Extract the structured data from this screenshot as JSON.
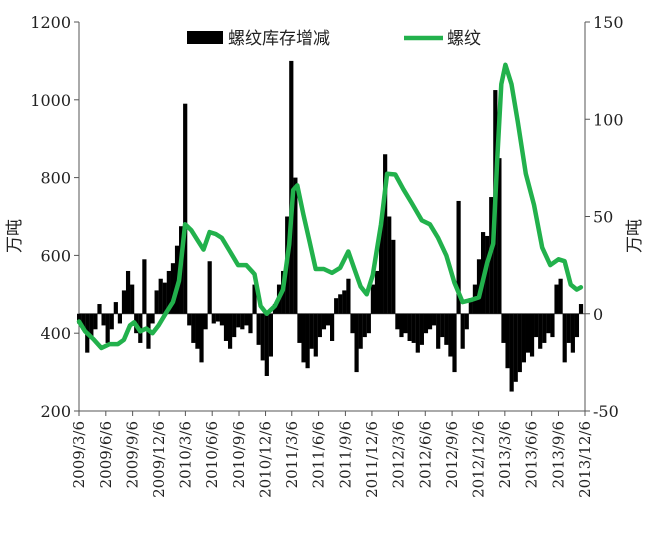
{
  "chart_data": {
    "type": "bar+line",
    "left_axis": {
      "label": "万吨",
      "min": 200,
      "max": 1200,
      "ticks": [
        200,
        400,
        600,
        800,
        1000,
        1200
      ]
    },
    "right_axis": {
      "label": "万吨",
      "min": -50,
      "max": 150,
      "ticks": [
        -50,
        0,
        50,
        100,
        150
      ]
    },
    "x_axis": {
      "tick_labels": [
        "2009/3/6",
        "2009/6/6",
        "2009/9/6",
        "2009/12/6",
        "2010/3/6",
        "2010/6/6",
        "2010/9/6",
        "2010/12/6",
        "2011/3/6",
        "2011/6/6",
        "2011/9/6",
        "2011/12/6",
        "2012/3/6",
        "2012/6/6",
        "2012/9/6",
        "2012/12/6",
        "2013/3/6",
        "2013/6/6",
        "2013/9/6",
        "2013/12/6"
      ]
    },
    "legend": {
      "position": "top",
      "bar_series_name": "螺纹库存增减",
      "line_series_name": "螺纹"
    },
    "colors": {
      "bar": "#000000",
      "line": "#22b14c",
      "axis": "#555555"
    },
    "series": [
      {
        "name": "螺纹库存增减",
        "type": "bar",
        "axis": "right",
        "points": [
          {
            "x": "2009-03-06",
            "y": -5
          },
          {
            "x": "2009-03-20",
            "y": -8
          },
          {
            "x": "2009-04-03",
            "y": -20
          },
          {
            "x": "2009-04-17",
            "y": -12
          },
          {
            "x": "2009-05-01",
            "y": -8
          },
          {
            "x": "2009-05-15",
            "y": 5
          },
          {
            "x": "2009-05-29",
            "y": -6
          },
          {
            "x": "2009-06-12",
            "y": -15
          },
          {
            "x": "2009-06-26",
            "y": -8
          },
          {
            "x": "2009-07-10",
            "y": 6
          },
          {
            "x": "2009-07-24",
            "y": -5
          },
          {
            "x": "2009-08-07",
            "y": 12
          },
          {
            "x": "2009-08-21",
            "y": 22
          },
          {
            "x": "2009-09-04",
            "y": 15
          },
          {
            "x": "2009-09-18",
            "y": -10
          },
          {
            "x": "2009-10-02",
            "y": -15
          },
          {
            "x": "2009-10-16",
            "y": 28
          },
          {
            "x": "2009-10-30",
            "y": -18
          },
          {
            "x": "2009-11-13",
            "y": -5
          },
          {
            "x": "2009-11-27",
            "y": 12
          },
          {
            "x": "2009-12-11",
            "y": 18
          },
          {
            "x": "2009-12-25",
            "y": 16
          },
          {
            "x": "2010-01-08",
            "y": 22
          },
          {
            "x": "2010-01-22",
            "y": 26
          },
          {
            "x": "2010-02-05",
            "y": 35
          },
          {
            "x": "2010-02-19",
            "y": 45
          },
          {
            "x": "2010-03-05",
            "y": 108
          },
          {
            "x": "2010-03-19",
            "y": -6
          },
          {
            "x": "2010-04-02",
            "y": -15
          },
          {
            "x": "2010-04-16",
            "y": -18
          },
          {
            "x": "2010-04-30",
            "y": -25
          },
          {
            "x": "2010-05-14",
            "y": -8
          },
          {
            "x": "2010-05-28",
            "y": 27
          },
          {
            "x": "2010-06-11",
            "y": -5
          },
          {
            "x": "2010-06-25",
            "y": -4
          },
          {
            "x": "2010-07-09",
            "y": -6
          },
          {
            "x": "2010-07-23",
            "y": -14
          },
          {
            "x": "2010-08-06",
            "y": -18
          },
          {
            "x": "2010-08-20",
            "y": -12
          },
          {
            "x": "2010-09-03",
            "y": -7
          },
          {
            "x": "2010-09-17",
            "y": -8
          },
          {
            "x": "2010-10-01",
            "y": -6
          },
          {
            "x": "2010-10-15",
            "y": -10
          },
          {
            "x": "2010-10-29",
            "y": 15
          },
          {
            "x": "2010-11-12",
            "y": -16
          },
          {
            "x": "2010-11-26",
            "y": -24
          },
          {
            "x": "2010-12-10",
            "y": -32
          },
          {
            "x": "2010-12-24",
            "y": -22
          },
          {
            "x": "2011-01-07",
            "y": 5
          },
          {
            "x": "2011-01-21",
            "y": 15
          },
          {
            "x": "2011-02-04",
            "y": 22
          },
          {
            "x": "2011-02-18",
            "y": 50
          },
          {
            "x": "2011-03-04",
            "y": 130
          },
          {
            "x": "2011-03-18",
            "y": 70
          },
          {
            "x": "2011-04-01",
            "y": -15
          },
          {
            "x": "2011-04-15",
            "y": -25
          },
          {
            "x": "2011-04-29",
            "y": -28
          },
          {
            "x": "2011-05-13",
            "y": -18
          },
          {
            "x": "2011-05-27",
            "y": -22
          },
          {
            "x": "2011-06-10",
            "y": -12
          },
          {
            "x": "2011-06-24",
            "y": -8
          },
          {
            "x": "2011-07-08",
            "y": -6
          },
          {
            "x": "2011-07-22",
            "y": -14
          },
          {
            "x": "2011-08-05",
            "y": 8
          },
          {
            "x": "2011-08-19",
            "y": 10
          },
          {
            "x": "2011-09-02",
            "y": 12
          },
          {
            "x": "2011-09-16",
            "y": 18
          },
          {
            "x": "2011-09-30",
            "y": -10
          },
          {
            "x": "2011-10-14",
            "y": -30
          },
          {
            "x": "2011-10-28",
            "y": -18
          },
          {
            "x": "2011-11-11",
            "y": -12
          },
          {
            "x": "2011-11-25",
            "y": -10
          },
          {
            "x": "2011-12-09",
            "y": 15
          },
          {
            "x": "2011-12-23",
            "y": 22
          },
          {
            "x": "2012-01-06",
            "y": 45
          },
          {
            "x": "2012-01-20",
            "y": 82
          },
          {
            "x": "2012-02-03",
            "y": 50
          },
          {
            "x": "2012-02-17",
            "y": 38
          },
          {
            "x": "2012-03-02",
            "y": -8
          },
          {
            "x": "2012-03-16",
            "y": -12
          },
          {
            "x": "2012-03-30",
            "y": -10
          },
          {
            "x": "2012-04-13",
            "y": -14
          },
          {
            "x": "2012-04-27",
            "y": -15
          },
          {
            "x": "2012-05-11",
            "y": -20
          },
          {
            "x": "2012-05-25",
            "y": -16
          },
          {
            "x": "2012-06-08",
            "y": -10
          },
          {
            "x": "2012-06-22",
            "y": -8
          },
          {
            "x": "2012-07-06",
            "y": -6
          },
          {
            "x": "2012-07-20",
            "y": -18
          },
          {
            "x": "2012-08-03",
            "y": -12
          },
          {
            "x": "2012-08-17",
            "y": -16
          },
          {
            "x": "2012-08-31",
            "y": -22
          },
          {
            "x": "2012-09-14",
            "y": -30
          },
          {
            "x": "2012-09-28",
            "y": 58
          },
          {
            "x": "2012-10-12",
            "y": -18
          },
          {
            "x": "2012-10-26",
            "y": -8
          },
          {
            "x": "2012-11-09",
            "y": 8
          },
          {
            "x": "2012-11-23",
            "y": 15
          },
          {
            "x": "2012-12-07",
            "y": 28
          },
          {
            "x": "2012-12-21",
            "y": 42
          },
          {
            "x": "2013-01-04",
            "y": 40
          },
          {
            "x": "2013-01-18",
            "y": 60
          },
          {
            "x": "2013-02-01",
            "y": 115
          },
          {
            "x": "2013-02-15",
            "y": 80
          },
          {
            "x": "2013-03-01",
            "y": -15
          },
          {
            "x": "2013-03-15",
            "y": -28
          },
          {
            "x": "2013-03-29",
            "y": -40
          },
          {
            "x": "2013-04-12",
            "y": -35
          },
          {
            "x": "2013-04-26",
            "y": -30
          },
          {
            "x": "2013-05-10",
            "y": -25
          },
          {
            "x": "2013-05-24",
            "y": -20
          },
          {
            "x": "2013-06-07",
            "y": -22
          },
          {
            "x": "2013-06-21",
            "y": -12
          },
          {
            "x": "2013-07-05",
            "y": -18
          },
          {
            "x": "2013-07-19",
            "y": -15
          },
          {
            "x": "2013-08-02",
            "y": -10
          },
          {
            "x": "2013-08-16",
            "y": -12
          },
          {
            "x": "2013-08-30",
            "y": 15
          },
          {
            "x": "2013-09-13",
            "y": 18
          },
          {
            "x": "2013-09-27",
            "y": -25
          },
          {
            "x": "2013-10-11",
            "y": -15
          },
          {
            "x": "2013-10-25",
            "y": -20
          },
          {
            "x": "2013-11-08",
            "y": -12
          },
          {
            "x": "2013-11-22",
            "y": 5
          }
        ]
      },
      {
        "name": "螺纹",
        "type": "line",
        "axis": "left",
        "points": [
          {
            "x": "2009-03-06",
            "y": 430
          },
          {
            "x": "2009-03-27",
            "y": 405
          },
          {
            "x": "2009-04-24",
            "y": 385
          },
          {
            "x": "2009-05-22",
            "y": 362
          },
          {
            "x": "2009-06-19",
            "y": 372
          },
          {
            "x": "2009-07-17",
            "y": 372
          },
          {
            "x": "2009-08-07",
            "y": 383
          },
          {
            "x": "2009-08-28",
            "y": 420
          },
          {
            "x": "2009-09-11",
            "y": 428
          },
          {
            "x": "2009-10-02",
            "y": 405
          },
          {
            "x": "2009-10-23",
            "y": 412
          },
          {
            "x": "2009-11-13",
            "y": 400
          },
          {
            "x": "2009-12-04",
            "y": 420
          },
          {
            "x": "2010-01-01",
            "y": 455
          },
          {
            "x": "2010-01-22",
            "y": 480
          },
          {
            "x": "2010-02-12",
            "y": 535
          },
          {
            "x": "2010-03-05",
            "y": 680
          },
          {
            "x": "2010-03-26",
            "y": 665
          },
          {
            "x": "2010-04-16",
            "y": 640
          },
          {
            "x": "2010-05-07",
            "y": 615
          },
          {
            "x": "2010-05-28",
            "y": 660
          },
          {
            "x": "2010-06-18",
            "y": 655
          },
          {
            "x": "2010-07-09",
            "y": 645
          },
          {
            "x": "2010-08-06",
            "y": 610
          },
          {
            "x": "2010-09-03",
            "y": 575
          },
          {
            "x": "2010-10-01",
            "y": 575
          },
          {
            "x": "2010-10-29",
            "y": 552
          },
          {
            "x": "2010-11-19",
            "y": 470
          },
          {
            "x": "2010-12-10",
            "y": 450
          },
          {
            "x": "2011-01-07",
            "y": 470
          },
          {
            "x": "2011-02-04",
            "y": 512
          },
          {
            "x": "2011-02-25",
            "y": 628
          },
          {
            "x": "2011-03-11",
            "y": 768
          },
          {
            "x": "2011-03-25",
            "y": 780
          },
          {
            "x": "2011-04-15",
            "y": 705
          },
          {
            "x": "2011-05-06",
            "y": 635
          },
          {
            "x": "2011-05-27",
            "y": 565
          },
          {
            "x": "2011-06-24",
            "y": 565
          },
          {
            "x": "2011-07-22",
            "y": 555
          },
          {
            "x": "2011-08-19",
            "y": 568
          },
          {
            "x": "2011-09-16",
            "y": 610
          },
          {
            "x": "2011-10-07",
            "y": 565
          },
          {
            "x": "2011-10-28",
            "y": 520
          },
          {
            "x": "2011-11-18",
            "y": 500
          },
          {
            "x": "2011-12-09",
            "y": 550
          },
          {
            "x": "2012-01-06",
            "y": 680
          },
          {
            "x": "2012-01-27",
            "y": 810
          },
          {
            "x": "2012-02-24",
            "y": 808
          },
          {
            "x": "2012-03-23",
            "y": 770
          },
          {
            "x": "2012-04-20",
            "y": 735
          },
          {
            "x": "2012-05-25",
            "y": 690
          },
          {
            "x": "2012-06-22",
            "y": 680
          },
          {
            "x": "2012-07-20",
            "y": 645
          },
          {
            "x": "2012-08-17",
            "y": 600
          },
          {
            "x": "2012-09-14",
            "y": 530
          },
          {
            "x": "2012-10-12",
            "y": 480
          },
          {
            "x": "2012-11-09",
            "y": 485
          },
          {
            "x": "2012-12-07",
            "y": 492
          },
          {
            "x": "2013-01-04",
            "y": 580
          },
          {
            "x": "2013-01-25",
            "y": 630
          },
          {
            "x": "2013-02-08",
            "y": 850
          },
          {
            "x": "2013-02-22",
            "y": 1040
          },
          {
            "x": "2013-03-08",
            "y": 1090
          },
          {
            "x": "2013-03-29",
            "y": 1040
          },
          {
            "x": "2013-04-19",
            "y": 945
          },
          {
            "x": "2013-05-17",
            "y": 810
          },
          {
            "x": "2013-06-14",
            "y": 730
          },
          {
            "x": "2013-07-12",
            "y": 620
          },
          {
            "x": "2013-08-09",
            "y": 575
          },
          {
            "x": "2013-09-06",
            "y": 590
          },
          {
            "x": "2013-09-27",
            "y": 585
          },
          {
            "x": "2013-10-18",
            "y": 525
          },
          {
            "x": "2013-11-08",
            "y": 512
          },
          {
            "x": "2013-11-22",
            "y": 518
          }
        ]
      }
    ]
  }
}
